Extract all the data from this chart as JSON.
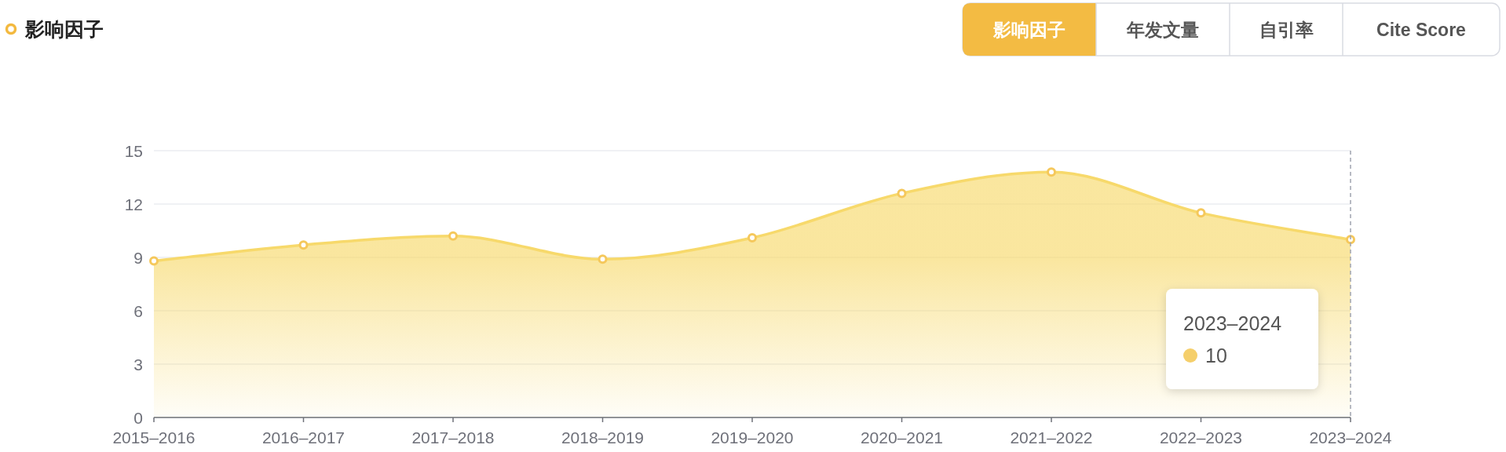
{
  "chart_data": {
    "type": "area",
    "title": "影响因子",
    "categories": [
      "2015–2016",
      "2016–2017",
      "2017–2018",
      "2018–2019",
      "2019–2020",
      "2020–2021",
      "2021–2022",
      "2022–2023",
      "2023–2024"
    ],
    "series": [
      {
        "color": "#f7d96b",
        "values": [
          8.8,
          9.7,
          10.2,
          8.9,
          10.1,
          12.6,
          13.8,
          11.5,
          10
        ]
      }
    ],
    "ylim": [
      0,
      15
    ],
    "yticks": [
      0,
      3,
      6,
      9,
      12,
      15
    ],
    "grid": "y",
    "marker": "circle",
    "ref_lines": [
      {
        "axis": "x",
        "value": "2023–2024",
        "line_style": "dashed",
        "color": "#a0a4b0"
      }
    ],
    "annotations": [
      "影响因子",
      "年发文量",
      "自引率",
      "Cite Score",
      "2023–2024\n10"
    ]
  }
}
